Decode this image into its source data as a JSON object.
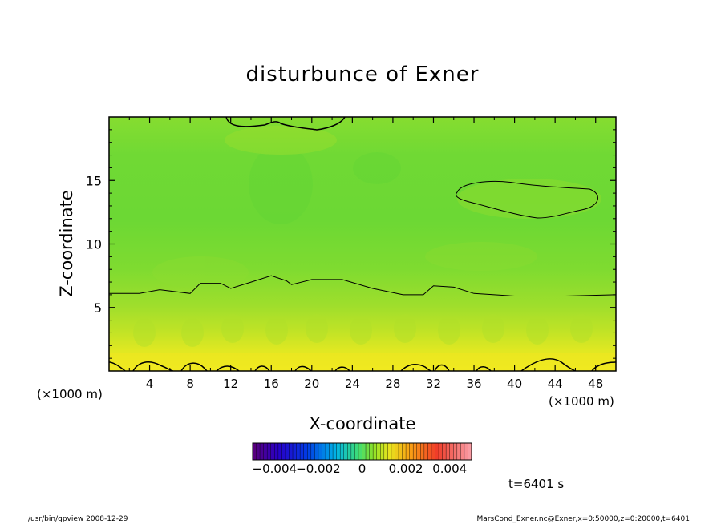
{
  "chart_data": {
    "type": "heatmap",
    "title": "disturbunce of Exner",
    "xlabel": "X-coordinate",
    "ylabel": "Z-coordinate",
    "x_unit_left": "(×1000 m)",
    "x_unit_right": "(×1000 m)",
    "xlim": [
      0,
      50
    ],
    "ylim": [
      0,
      20
    ],
    "x_ticks": [
      4,
      8,
      12,
      16,
      20,
      24,
      28,
      32,
      36,
      40,
      44,
      48
    ],
    "y_ticks": [
      5,
      10,
      15
    ],
    "colorbar": {
      "range": [
        -0.005,
        0.005
      ],
      "ticks": [
        "−0.004",
        "−0.002",
        "0",
        "0.002",
        "0.004"
      ],
      "tick_values": [
        -0.004,
        -0.002,
        0,
        0.002,
        0.004
      ]
    },
    "contour_z_levels": [
      {
        "x": 0,
        "z": 6.1
      },
      {
        "x": 3,
        "z": 6.1
      },
      {
        "x": 5,
        "z": 6.4
      },
      {
        "x": 8,
        "z": 6.1
      },
      {
        "x": 9,
        "z": 6.9
      },
      {
        "x": 11,
        "z": 6.9
      },
      {
        "x": 12,
        "z": 6.5
      },
      {
        "x": 14,
        "z": 7.0
      },
      {
        "x": 16,
        "z": 7.5
      },
      {
        "x": 17.5,
        "z": 7.1
      },
      {
        "x": 18,
        "z": 6.8
      },
      {
        "x": 20,
        "z": 7.2
      },
      {
        "x": 23,
        "z": 7.2
      },
      {
        "x": 26,
        "z": 6.5
      },
      {
        "x": 29,
        "z": 6.0
      },
      {
        "x": 31,
        "z": 6.0
      },
      {
        "x": 32,
        "z": 6.7
      },
      {
        "x": 34,
        "z": 6.6
      },
      {
        "x": 36,
        "z": 6.1
      },
      {
        "x": 40,
        "z": 5.9
      },
      {
        "x": 45,
        "z": 5.9
      },
      {
        "x": 50,
        "z": 6.0
      }
    ],
    "time_label": "t=6401 s"
  },
  "footer": {
    "left": "/usr/bin/gpview   2008-12-29",
    "right": "MarsCond_Exner.nc@Exner,x=0:50000,z=0:20000,t=6401"
  }
}
